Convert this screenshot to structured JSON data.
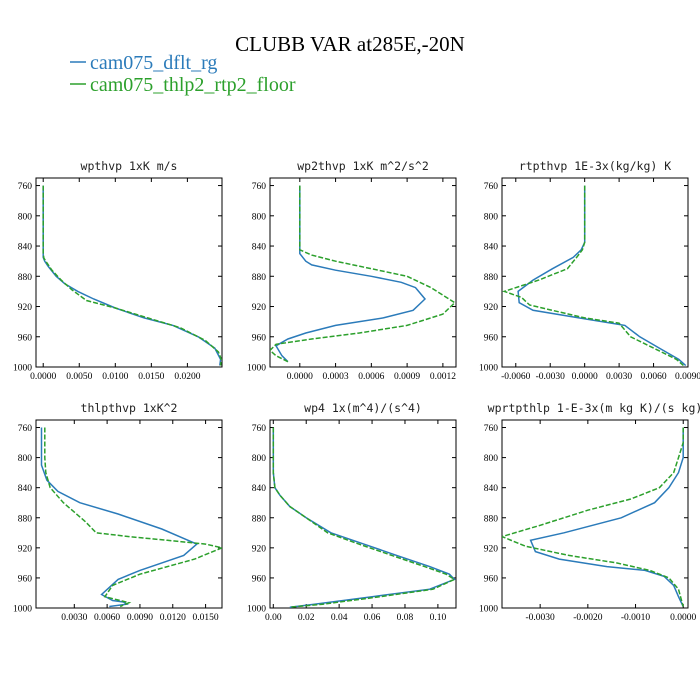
{
  "title": "CLUBB VAR at285E,-20N",
  "legend": [
    {
      "label": "cam075_dflt_rg",
      "color": "#2b7bba",
      "dash": false
    },
    {
      "label": "cam075_thlp2_rtp2_floor",
      "color": "#2ca02c",
      "dash": true
    }
  ],
  "chart_data": [
    {
      "type": "line",
      "title": "wpthvp  1xK m/s",
      "ylim": [
        1000,
        750
      ],
      "xlim": [
        -0.001,
        0.0248
      ],
      "yticks": [
        760,
        800,
        840,
        880,
        920,
        960,
        1000
      ],
      "xticks": [
        0,
        0.005,
        0.01,
        0.015,
        0.02
      ],
      "xtick_labels": [
        "0.0000",
        "0.0050",
        "0.0100",
        "0.0150",
        "0.0200"
      ],
      "series": [
        {
          "name": "cam075_dflt_rg",
          "color": "#2b7bba",
          "dash": false,
          "x": [
            0,
            0,
            0,
            0,
            0,
            0,
            0,
            0.0002,
            0.0007,
            0.0018,
            0.003,
            0.0048,
            0.007,
            0.01,
            0.014,
            0.018,
            0.0215,
            0.0238,
            0.0246,
            0.0245
          ],
          "y": [
            760,
            780,
            800,
            820,
            840,
            850,
            855,
            860,
            867,
            880,
            890,
            900,
            910,
            922,
            935,
            945,
            960,
            975,
            990,
            998
          ]
        },
        {
          "name": "cam075_thlp2_rtp2_floor",
          "color": "#2ca02c",
          "dash": true,
          "x": [
            0,
            0,
            0,
            0,
            0,
            0,
            0.0001,
            0.0005,
            0.0012,
            0.0025,
            0.004,
            0.006,
            0.01,
            0.0145,
            0.019,
            0.0225,
            0.0243,
            0.0247,
            0.0246
          ],
          "y": [
            760,
            780,
            800,
            820,
            840,
            850,
            856,
            862,
            872,
            885,
            898,
            912,
            922,
            935,
            948,
            965,
            980,
            990,
            998
          ]
        }
      ]
    },
    {
      "type": "line",
      "title": "wp2thvp  1xK m^2/s^2",
      "ylim": [
        1000,
        750
      ],
      "xlim": [
        -0.00025,
        0.00131
      ],
      "yticks": [
        760,
        800,
        840,
        880,
        920,
        960,
        1000
      ],
      "xticks": [
        0,
        0.0003,
        0.0006,
        0.0009,
        0.0012
      ],
      "xtick_labels": [
        "0.0000",
        "0.0003",
        "0.0006",
        "0.0009",
        "0.0012"
      ],
      "series": [
        {
          "name": "cam075_dflt_rg",
          "color": "#2b7bba",
          "dash": false,
          "x": [
            0,
            0,
            0,
            0,
            0,
            0,
            5e-05,
            0.0001,
            0.0003,
            0.0006,
            0.00085,
            0.00097,
            0.00105,
            0.00095,
            0.0007,
            0.0003,
            5e-05,
            -0.0001,
            -0.0002,
            -0.00015,
            -0.0001
          ],
          "y": [
            760,
            780,
            800,
            820,
            840,
            850,
            860,
            865,
            872,
            880,
            888,
            895,
            910,
            925,
            935,
            945,
            955,
            963,
            972,
            985,
            993
          ]
        },
        {
          "name": "cam075_thlp2_rtp2_floor",
          "color": "#2ca02c",
          "dash": true,
          "x": [
            0,
            0,
            0,
            0,
            0,
            0,
            0.0001,
            0.0003,
            0.0006,
            0.0009,
            0.0011,
            0.0013,
            0.0012,
            0.0009,
            0.0005,
            0.0001,
            -0.0002,
            -0.00025,
            -0.0002,
            -0.0001
          ],
          "y": [
            760,
            780,
            800,
            820,
            840,
            845,
            852,
            860,
            870,
            880,
            895,
            915,
            930,
            945,
            955,
            963,
            970,
            978,
            985,
            993
          ]
        }
      ]
    },
    {
      "type": "line",
      "title": "rtpthvp  1E-3x(kg/kg) K",
      "ylim": [
        1000,
        750
      ],
      "xlim": [
        -0.0072,
        0.009
      ],
      "yticks": [
        760,
        800,
        840,
        880,
        920,
        960,
        1000
      ],
      "xticks": [
        -0.006,
        -0.003,
        0,
        0.003,
        0.006,
        0.009
      ],
      "xtick_labels": [
        "-0.0060",
        "-0.0030",
        "0.0000",
        "0.0030",
        "0.0060",
        "0.0090"
      ],
      "series": [
        {
          "name": "cam075_dflt_rg",
          "color": "#2b7bba",
          "dash": false,
          "x": [
            0,
            0,
            0,
            0,
            0,
            -0.0003,
            -0.001,
            -0.0028,
            -0.0045,
            -0.0058,
            -0.0057,
            -0.0045,
            -0.0005,
            0.0035,
            0.0048,
            0.0065,
            0.0082,
            0.0088
          ],
          "y": [
            760,
            780,
            800,
            820,
            835,
            845,
            855,
            870,
            885,
            900,
            915,
            925,
            935,
            945,
            960,
            975,
            990,
            998
          ]
        },
        {
          "name": "cam075_thlp2_rtp2_floor",
          "color": "#2ca02c",
          "dash": true,
          "x": [
            0,
            0,
            0,
            0,
            0,
            -0.0002,
            -0.0007,
            -0.0015,
            -0.004,
            -0.007,
            -0.0055,
            -0.0048,
            0.0,
            0.003,
            0.004,
            0.006,
            0.008,
            0.0086
          ],
          "y": [
            760,
            780,
            800,
            820,
            835,
            845,
            855,
            870,
            885,
            900,
            908,
            918,
            935,
            942,
            960,
            975,
            990,
            998
          ]
        }
      ]
    },
    {
      "type": "line",
      "title": "thlpthvp  1xK^2",
      "ylim": [
        1000,
        750
      ],
      "xlim": [
        -0.0005,
        0.0165
      ],
      "yticks": [
        760,
        800,
        840,
        880,
        920,
        960,
        1000
      ],
      "xticks": [
        0.003,
        0.006,
        0.009,
        0.012,
        0.015
      ],
      "xtick_labels": [
        "0.0030",
        "0.0060",
        "0.0090",
        "0.0120",
        "0.0150"
      ],
      "series": [
        {
          "name": "cam075_dflt_rg",
          "color": "#2b7bba",
          "dash": false,
          "x": [
            0,
            0,
            0,
            0,
            0.0005,
            0.0015,
            0.0035,
            0.007,
            0.011,
            0.0142,
            0.013,
            0.009,
            0.007,
            0.0055,
            0.0065,
            0.0075,
            0.0078,
            0.0062
          ],
          "y": [
            760,
            780,
            800,
            810,
            830,
            845,
            860,
            875,
            895,
            915,
            930,
            950,
            962,
            982,
            990,
            992,
            995,
            998
          ]
        },
        {
          "name": "cam075_thlp2_rtp2_floor",
          "color": "#2ca02c",
          "dash": true,
          "x": [
            0.0003,
            0.0003,
            0.0003,
            0.0004,
            0.0008,
            0.002,
            0.004,
            0.005,
            0.008,
            0.0115,
            0.015,
            0.0165,
            0.014,
            0.009,
            0.0065,
            0.0058,
            0.008,
            0.0072
          ],
          "y": [
            760,
            780,
            800,
            820,
            840,
            860,
            885,
            900,
            905,
            910,
            915,
            920,
            935,
            955,
            970,
            985,
            993,
            998
          ]
        }
      ]
    },
    {
      "type": "line",
      "title": "wp4  1x(m^4)/(s^4)",
      "ylim": [
        1000,
        750
      ],
      "xlim": [
        -0.002,
        0.111
      ],
      "yticks": [
        760,
        800,
        840,
        880,
        920,
        960,
        1000
      ],
      "xticks": [
        0,
        0.02,
        0.04,
        0.06,
        0.08,
        0.1
      ],
      "xtick_labels": [
        "0.00",
        "0.02",
        "0.04",
        "0.06",
        "0.08",
        "0.10"
      ],
      "series": [
        {
          "name": "cam075_dflt_rg",
          "color": "#2b7bba",
          "dash": false,
          "x": [
            0,
            0,
            0,
            0.001,
            0.004,
            0.01,
            0.02,
            0.035,
            0.055,
            0.075,
            0.095,
            0.107,
            0.11,
            0.095,
            0.06,
            0.025,
            0.01
          ],
          "y": [
            760,
            800,
            820,
            840,
            850,
            865,
            880,
            900,
            915,
            930,
            945,
            955,
            962,
            975,
            985,
            995,
            999
          ]
        },
        {
          "name": "cam075_thlp2_rtp2_floor",
          "color": "#2ca02c",
          "dash": true,
          "x": [
            0,
            0,
            0,
            0.001,
            0.004,
            0.01,
            0.02,
            0.033,
            0.052,
            0.072,
            0.092,
            0.105,
            0.11,
            0.097,
            0.065,
            0.03,
            0.01
          ],
          "y": [
            760,
            800,
            820,
            840,
            850,
            865,
            880,
            900,
            915,
            930,
            945,
            955,
            962,
            975,
            985,
            995,
            999
          ]
        }
      ]
    },
    {
      "type": "line",
      "title": "wprtpthlp  1-E-3x(m kg K)/(s kg)",
      "ylim": [
        1000,
        750
      ],
      "xlim": [
        -0.0038,
        0.0001
      ],
      "yticks": [
        760,
        800,
        840,
        880,
        920,
        960,
        1000
      ],
      "xticks": [
        -0.003,
        -0.002,
        -0.001,
        0
      ],
      "xtick_labels": [
        "-0.0030",
        "-0.0020",
        "-0.0010",
        "0.0000"
      ],
      "series": [
        {
          "name": "cam075_dflt_rg",
          "color": "#2b7bba",
          "dash": false,
          "x": [
            0,
            0,
            0,
            -0.0001,
            -0.0003,
            -0.0006,
            -0.0013,
            -0.0025,
            -0.0032,
            -0.0031,
            -0.0026,
            -0.0016,
            -0.0008,
            -0.0004,
            -0.0002,
            -0.0001,
            0
          ],
          "y": [
            760,
            780,
            800,
            820,
            840,
            860,
            880,
            900,
            910,
            925,
            935,
            945,
            950,
            958,
            970,
            985,
            998
          ]
        },
        {
          "name": "cam075_thlp2_rtp2_floor",
          "color": "#2ca02c",
          "dash": true,
          "x": [
            0,
            0,
            -0.0001,
            -0.0002,
            -0.0005,
            -0.0011,
            -0.002,
            -0.003,
            -0.0038,
            -0.0033,
            -0.0024,
            -0.0014,
            -0.0007,
            -0.0003,
            -0.0001,
            0
          ],
          "y": [
            760,
            780,
            800,
            820,
            840,
            855,
            870,
            890,
            905,
            918,
            930,
            940,
            950,
            960,
            975,
            998
          ]
        }
      ]
    }
  ]
}
